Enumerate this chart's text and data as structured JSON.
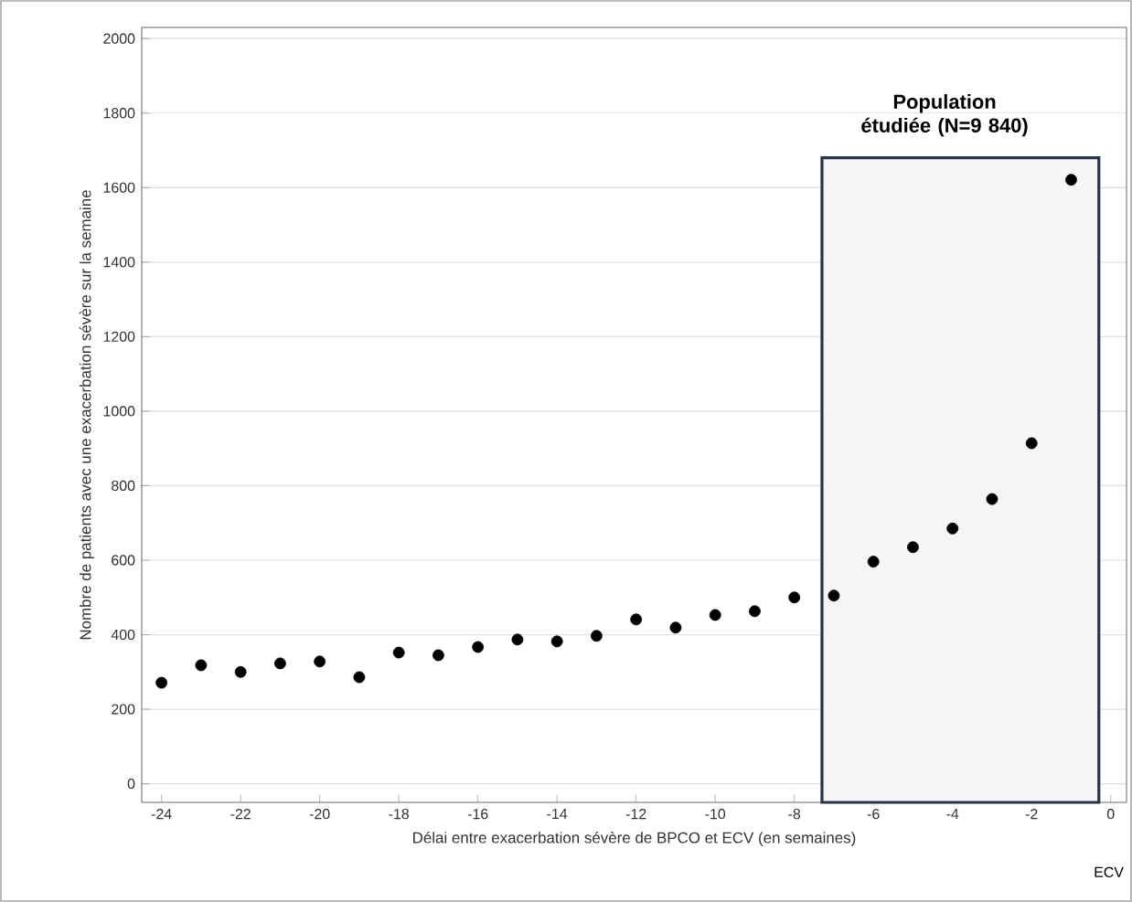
{
  "chart_data": {
    "type": "scatter",
    "xlabel": "Délai entre exacerbation sévère de BPCO et ECV (en semaines)",
    "ylabel": "Nombre de patients avec une exacerbation sévère sur la semaine",
    "x": [
      -24,
      -23,
      -22,
      -21,
      -20,
      -19,
      -18,
      -17,
      -16,
      -15,
      -14,
      -13,
      -12,
      -11,
      -10,
      -9,
      -8,
      -7,
      -6,
      -5,
      -4,
      -3,
      -2,
      -1
    ],
    "values": [
      271,
      318,
      300,
      323,
      328,
      286,
      352,
      345,
      367,
      387,
      382,
      397,
      441,
      419,
      453,
      463,
      500,
      505,
      596,
      635,
      685,
      764,
      914,
      1621
    ],
    "color": "#000000",
    "marker": "circle",
    "xlim": [
      -24.5,
      0.4
    ],
    "ylim": [
      -50,
      2030
    ],
    "xticks": [
      -24,
      -22,
      -20,
      -18,
      -16,
      -14,
      -12,
      -10,
      -8,
      -6,
      -4,
      -2,
      0
    ],
    "yticks": [
      0,
      200,
      400,
      600,
      800,
      1000,
      1200,
      1400,
      1600,
      1800,
      2000
    ],
    "grid": "y",
    "bands": [
      {
        "axis": "x",
        "from": -7.3,
        "to": -0.3,
        "label": "Population étudiée (N=9 840)",
        "color": "#2b3445"
      }
    ],
    "annotations": [
      "ECV"
    ]
  }
}
